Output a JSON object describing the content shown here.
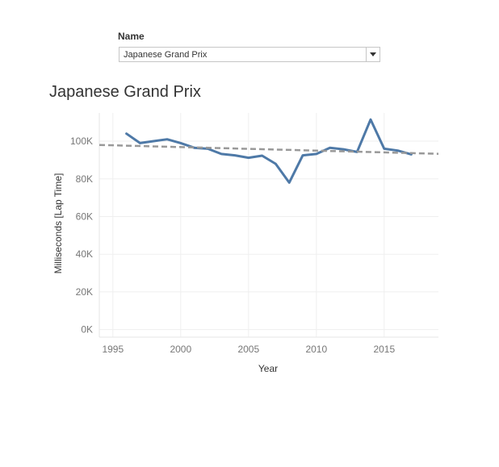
{
  "filter": {
    "label": "Name",
    "selected": "Japanese Grand Prix"
  },
  "chart_data": {
    "type": "line",
    "title": "Japanese Grand Prix",
    "xlabel": "Year",
    "ylabel": "Milliseconds [Lap Time]",
    "xlim": [
      1994,
      2019
    ],
    "ylim": [
      -4000,
      115000
    ],
    "xticks": [
      1995,
      2000,
      2005,
      2010,
      2015
    ],
    "yticks": [
      {
        "value": 0,
        "label": "0K"
      },
      {
        "value": 20000,
        "label": "20K"
      },
      {
        "value": 40000,
        "label": "40K"
      },
      {
        "value": 60000,
        "label": "60K"
      },
      {
        "value": 80000,
        "label": "80K"
      },
      {
        "value": 100000,
        "label": "100K"
      }
    ],
    "grid": true,
    "series": [
      {
        "color": "#4e79a7",
        "x": [
          1996,
          1997,
          1998,
          1999,
          2000,
          2001,
          2002,
          2003,
          2004,
          2005,
          2006,
          2007,
          2008,
          2009,
          2010,
          2011,
          2012,
          2013,
          2014,
          2015,
          2016,
          2017
        ],
        "values": [
          104000,
          99000,
          100000,
          101000,
          99000,
          96500,
          96000,
          93200,
          92500,
          91200,
          92300,
          88000,
          78000,
          92500,
          93200,
          96500,
          95700,
          94300,
          111500,
          96000,
          95000,
          93000
        ]
      }
    ],
    "trend_line": {
      "style": "dashed",
      "color": "#999999",
      "x": [
        1994,
        2019
      ],
      "values": [
        98000,
        93300
      ]
    }
  }
}
